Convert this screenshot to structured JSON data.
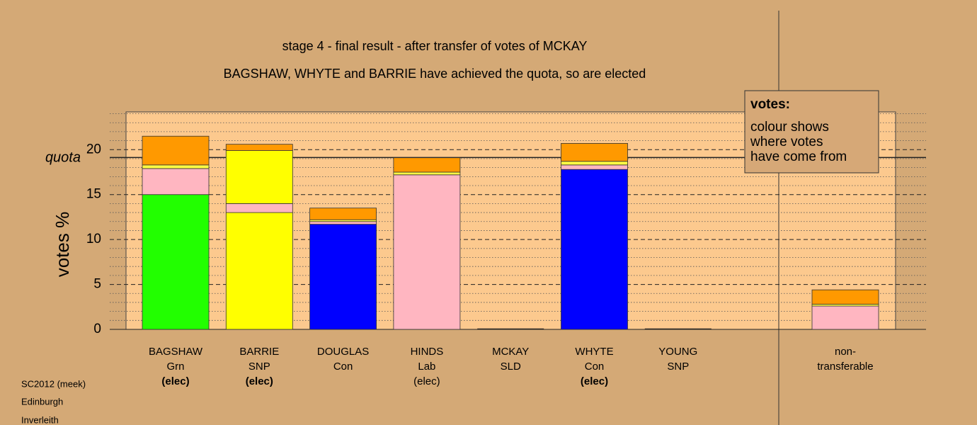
{
  "chart_data": {
    "type": "stacked-bar",
    "title": "stage 4 - final result - after transfer of votes of MCKAY",
    "subtitle": "BAGSHAW, WHYTE and BARRIE have achieved the quota, so are elected",
    "y_label": "votes %",
    "ylim": [
      0,
      24.2
    ],
    "yticks": [
      0,
      5,
      10,
      15,
      20
    ],
    "minor_yticks": [
      1,
      2,
      3,
      4,
      6,
      7,
      8,
      9,
      11,
      12,
      13,
      14,
      16,
      17,
      18,
      19,
      21,
      22,
      23,
      24
    ],
    "quota": {
      "label": "quota",
      "value": 19.13
    },
    "bars": [
      {
        "lines": [
          "BAGSHAW",
          "Grn",
          "(elec)"
        ],
        "elected": true,
        "segments": [
          {
            "color": "#22ff00",
            "value": 15.0
          },
          {
            "color": "#ffb6c1",
            "value": 2.9
          },
          {
            "color": "#ffff44",
            "value": 0.4
          },
          {
            "color": "#ff9900",
            "value": 3.2
          }
        ]
      },
      {
        "lines": [
          "BARRIE",
          "SNP",
          "(elec)"
        ],
        "elected": true,
        "segments": [
          {
            "color": "#ffff00",
            "value": 13.0
          },
          {
            "color": "#ffb6c1",
            "value": 1.0
          },
          {
            "color": "#ffff00",
            "value": 5.9
          },
          {
            "color": "#ff9900",
            "value": 0.7
          }
        ]
      },
      {
        "lines": [
          "DOUGLAS",
          "Con"
        ],
        "elected": false,
        "segments": [
          {
            "color": "#0000ff",
            "value": 11.7
          },
          {
            "color": "#ffb6c1",
            "value": 0.3
          },
          {
            "color": "#ffff44",
            "value": 0.2
          },
          {
            "color": "#ff9900",
            "value": 1.3
          }
        ]
      },
      {
        "lines": [
          "HINDS",
          "Lab",
          "(elec)"
        ],
        "elected": false,
        "segments": [
          {
            "color": "#ffb6c1",
            "value": 17.2
          },
          {
            "color": "#ffff44",
            "value": 0.3
          },
          {
            "color": "#ff9900",
            "value": 1.6
          }
        ]
      },
      {
        "lines": [
          "MCKAY",
          "SLD"
        ],
        "elected": false,
        "segments": [
          {
            "color": "#ff9900",
            "value": 0
          }
        ]
      },
      {
        "lines": [
          "WHYTE",
          "Con",
          "(elec)"
        ],
        "elected": true,
        "segments": [
          {
            "color": "#0000ff",
            "value": 17.8
          },
          {
            "color": "#ffb6c1",
            "value": 0.5
          },
          {
            "color": "#ffff44",
            "value": 0.4
          },
          {
            "color": "#ff9900",
            "value": 2.0
          }
        ]
      },
      {
        "lines": [
          "YOUNG",
          "SNP"
        ],
        "elected": false,
        "segments": [
          {
            "color": "#ffff00",
            "value": 0
          }
        ]
      },
      {
        "lines": [
          "non-",
          "transferable"
        ],
        "elected": false,
        "segments": [
          {
            "color": "#ffb6c1",
            "value": 2.6
          },
          {
            "color": "#ffff44",
            "value": 0.2
          },
          {
            "color": "#ff9900",
            "value": 1.6
          }
        ]
      }
    ],
    "legend": {
      "title": "votes:",
      "lines": [
        "colour shows",
        "where votes",
        "have come from"
      ]
    },
    "footer": [
      "SC2012 (meek)",
      "Edinburgh",
      "Inverleith"
    ]
  }
}
